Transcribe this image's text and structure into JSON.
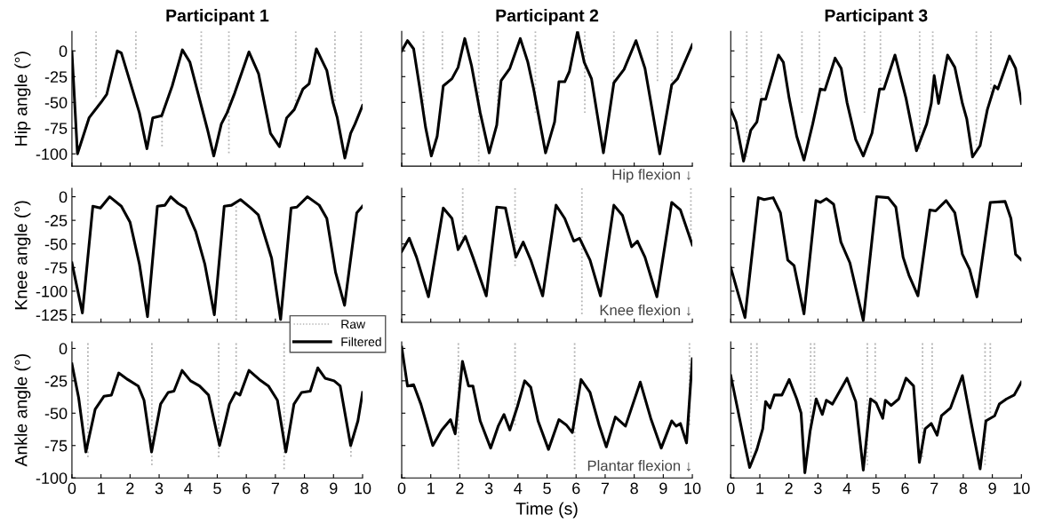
{
  "chart_data": [
    {
      "type": "line",
      "title": "Participant 1",
      "ylabel": "Hip angle (°)",
      "xlim": [
        0,
        10
      ],
      "ylim": [
        -112,
        19
      ],
      "xticks": [
        0,
        1,
        2,
        3,
        4,
        5,
        6,
        7,
        8,
        9,
        10
      ],
      "yticks": [
        -100,
        -75,
        -50,
        -25,
        0
      ],
      "tick_labels": "y",
      "series": [
        {
          "color": "#b4b4b4",
          "line_style": "dotted",
          "x": [
            0.83,
            0.83
          ],
          "values": [
            19,
            -45
          ]
        },
        {
          "color": "#b4b4b4",
          "line_style": "dotted",
          "x": [
            2.2,
            2.2
          ],
          "values": [
            19,
            -20
          ]
        },
        {
          "color": "#b4b4b4",
          "line_style": "dotted",
          "x": [
            3.1,
            3.1
          ],
          "values": [
            -60,
            -95
          ]
        },
        {
          "color": "#b4b4b4",
          "line_style": "dotted",
          "x": [
            4.45,
            4.45
          ],
          "values": [
            19,
            -40
          ]
        },
        {
          "color": "#b4b4b4",
          "line_style": "dotted",
          "x": [
            5.4,
            5.4
          ],
          "values": [
            19,
            -100
          ]
        },
        {
          "color": "#b4b4b4",
          "line_style": "dotted",
          "x": [
            7.7,
            7.7
          ],
          "values": [
            19,
            -55
          ]
        },
        {
          "color": "#b4b4b4",
          "line_style": "dotted",
          "x": [
            9.05,
            9.05
          ],
          "values": [
            19,
            -50
          ]
        },
        {
          "color": "#b4b4b4",
          "line_style": "dotted",
          "x": [
            9.95,
            9.95
          ],
          "values": [
            19,
            -50
          ]
        },
        {
          "color": "#000000",
          "line_style": "solid",
          "x": [
            0,
            0.19,
            0.59,
            1.0,
            1.2,
            1.56,
            1.7,
            2.32,
            2.58,
            2.78,
            3.09,
            3.45,
            3.8,
            4.06,
            4.67,
            4.88,
            5.14,
            5.34,
            5.6,
            6.09,
            6.42,
            6.83,
            7.14,
            7.39,
            7.65,
            7.95,
            8.16,
            8.41,
            8.77,
            8.98,
            9.13,
            9.39,
            9.59,
            9.74,
            10
          ],
          "values": [
            -1,
            -100,
            -65,
            -50,
            -42,
            0,
            -2,
            -60,
            -95,
            -65,
            -63,
            -34,
            1,
            -11,
            -77,
            -102,
            -71,
            -60,
            -41,
            -1,
            -22,
            -80,
            -93,
            -65,
            -57,
            -37,
            -32,
            2,
            -19,
            -50,
            -65,
            -104,
            -80,
            -71,
            -53
          ]
        }
      ]
    },
    {
      "type": "line",
      "title": "Participant 2",
      "annotations": [
        "Hip flexion ↓"
      ],
      "xlim": [
        0,
        10
      ],
      "ylim": [
        -112,
        19
      ],
      "xticks": [
        0,
        1,
        2,
        3,
        4,
        5,
        6,
        7,
        8,
        9,
        10
      ],
      "yticks": [
        -100,
        -75,
        -50,
        -25,
        0
      ],
      "tick_labels": false,
      "series": [
        {
          "color": "#b4b4b4",
          "line_style": "dotted",
          "x": [
            0.75,
            0.75
          ],
          "values": [
            19,
            -60
          ]
        },
        {
          "color": "#b4b4b4",
          "line_style": "dotted",
          "x": [
            1.4,
            1.4
          ],
          "values": [
            19,
            -20
          ]
        },
        {
          "color": "#b4b4b4",
          "line_style": "dotted",
          "x": [
            2.65,
            2.65
          ],
          "values": [
            19,
            -110
          ]
        },
        {
          "color": "#b4b4b4",
          "line_style": "dotted",
          "x": [
            3.3,
            3.3
          ],
          "values": [
            19,
            -60
          ]
        },
        {
          "color": "#b4b4b4",
          "line_style": "dotted",
          "x": [
            4.6,
            4.6
          ],
          "values": [
            19,
            -60
          ]
        },
        {
          "color": "#b4b4b4",
          "line_style": "dotted",
          "x": [
            6.3,
            6.3
          ],
          "values": [
            19,
            -60
          ]
        },
        {
          "color": "#b4b4b4",
          "line_style": "dotted",
          "x": [
            7.3,
            7.3
          ],
          "values": [
            19,
            -30
          ]
        },
        {
          "color": "#b4b4b4",
          "line_style": "dotted",
          "x": [
            8.8,
            8.8
          ],
          "values": [
            19,
            -30
          ]
        },
        {
          "color": "#b4b4b4",
          "line_style": "dotted",
          "x": [
            9.3,
            9.3
          ],
          "values": [
            19,
            -40
          ]
        },
        {
          "color": "#000000",
          "line_style": "solid",
          "x": [
            0,
            0.2,
            0.41,
            0.61,
            0.82,
            1.02,
            1.22,
            1.43,
            1.73,
            1.94,
            2.17,
            2.4,
            2.7,
            3.01,
            3.27,
            3.42,
            3.72,
            4.08,
            4.34,
            4.54,
            4.95,
            5.26,
            5.41,
            5.61,
            5.77,
            6.05,
            6.28,
            6.53,
            6.94,
            7.3,
            7.65,
            8.06,
            8.37,
            8.88,
            9.29,
            9.49,
            10
          ],
          "values": [
            0,
            10,
            2,
            -34,
            -74,
            -102,
            -83,
            -34,
            -27,
            -16,
            12,
            -14,
            -60,
            -99,
            -72,
            -29,
            -17,
            12,
            -11,
            -37,
            -99,
            -69,
            -30,
            -30,
            -20,
            19,
            -11,
            -27,
            -99,
            -31,
            -18,
            10,
            -17,
            -100,
            -33,
            -27,
            6
          ]
        }
      ]
    },
    {
      "type": "line",
      "title": "Participant 3",
      "xlim": [
        0,
        10
      ],
      "ylim": [
        -112,
        19
      ],
      "xticks": [
        0,
        1,
        2,
        3,
        4,
        5,
        6,
        7,
        8,
        9,
        10
      ],
      "yticks": [
        -100,
        -75,
        -50,
        -25,
        0
      ],
      "tick_labels": false,
      "series": [
        {
          "color": "#b4b4b4",
          "line_style": "dotted",
          "x": [
            0.55,
            0.55
          ],
          "values": [
            19,
            -105
          ]
        },
        {
          "color": "#b4b4b4",
          "line_style": "dotted",
          "x": [
            1.05,
            1.05
          ],
          "values": [
            19,
            -47
          ]
        },
        {
          "color": "#b4b4b4",
          "line_style": "dotted",
          "x": [
            2.45,
            2.45
          ],
          "values": [
            19,
            -60
          ]
        },
        {
          "color": "#b4b4b4",
          "line_style": "dotted",
          "x": [
            3.05,
            3.05
          ],
          "values": [
            19,
            -40
          ]
        },
        {
          "color": "#b4b4b4",
          "line_style": "dotted",
          "x": [
            4.6,
            4.6
          ],
          "values": [
            19,
            -60
          ]
        },
        {
          "color": "#b4b4b4",
          "line_style": "dotted",
          "x": [
            5.15,
            5.15
          ],
          "values": [
            19,
            -37
          ]
        },
        {
          "color": "#b4b4b4",
          "line_style": "dotted",
          "x": [
            6.5,
            6.5
          ],
          "values": [
            19,
            -95
          ]
        },
        {
          "color": "#b4b4b4",
          "line_style": "dotted",
          "x": [
            6.95,
            6.95
          ],
          "values": [
            19,
            -24
          ]
        },
        {
          "color": "#b4b4b4",
          "line_style": "dotted",
          "x": [
            8.45,
            8.45
          ],
          "values": [
            19,
            -95
          ]
        },
        {
          "color": "#b4b4b4",
          "line_style": "dotted",
          "x": [
            8.95,
            8.95
          ],
          "values": [
            19,
            -40
          ]
        },
        {
          "color": "#000000",
          "line_style": "solid",
          "x": [
            0,
            0.18,
            0.44,
            0.69,
            0.9,
            1.05,
            1.2,
            1.64,
            1.81,
            2.01,
            2.27,
            2.52,
            2.82,
            3.08,
            3.24,
            3.59,
            3.8,
            4.0,
            4.3,
            4.56,
            4.86,
            5.12,
            5.27,
            5.65,
            6.03,
            6.39,
            6.74,
            6.9,
            7.0,
            7.15,
            7.46,
            7.71,
            7.97,
            8.12,
            8.32,
            8.58,
            8.83,
            9.08,
            9.19,
            9.59,
            9.8,
            10
          ],
          "values": [
            -57,
            -69,
            -107,
            -77,
            -69,
            -47,
            -47,
            -4,
            -11,
            -46,
            -83,
            -106,
            -71,
            -37,
            -38,
            -7,
            -17,
            -50,
            -86,
            -102,
            -80,
            -37,
            -37,
            -4,
            -46,
            -97,
            -71,
            -51,
            -24,
            -51,
            -4,
            -16,
            -51,
            -66,
            -103,
            -92,
            -57,
            -34,
            -37,
            -5,
            -17,
            -51
          ]
        }
      ]
    },
    {
      "type": "line",
      "ylabel": "Knee angle (°)",
      "legend": "bottom right",
      "xlim": [
        0,
        10
      ],
      "ylim": [
        -133,
        9
      ],
      "xticks": [
        0,
        1,
        2,
        3,
        4,
        5,
        6,
        7,
        8,
        9,
        10
      ],
      "yticks": [
        -125,
        -100,
        -75,
        -50,
        -25,
        0
      ],
      "tick_labels": "y",
      "series": [
        {
          "name": "Raw",
          "color": "#b4b4b4",
          "line_style": "dotted",
          "x": [
            5.65,
            5.65
          ],
          "values": [
            -10,
            -133
          ]
        },
        {
          "name": "Filtered",
          "color": "#000000",
          "line_style": "solid",
          "x": [
            0,
            0.36,
            0.72,
            0.98,
            1.3,
            1.7,
            2.0,
            2.32,
            2.6,
            2.94,
            3.2,
            3.4,
            3.65,
            3.91,
            4.26,
            4.57,
            4.9,
            5.24,
            5.49,
            5.8,
            6.16,
            6.41,
            6.87,
            7.18,
            7.54,
            7.74,
            8.1,
            8.51,
            8.77,
            9.07,
            9.38,
            9.8,
            10
          ],
          "values": [
            -70,
            -123,
            -10,
            -12,
            0,
            -10,
            -27,
            -71,
            -127,
            -10,
            -9,
            0,
            -7,
            -12,
            -37,
            -71,
            -125,
            -10,
            -9,
            -3,
            -12,
            -19,
            -65,
            -130,
            -12,
            -11,
            0,
            -9,
            -23,
            -80,
            -115,
            -17,
            -10
          ]
        }
      ]
    },
    {
      "type": "line",
      "annotations": [
        "Knee flexion ↓"
      ],
      "xlim": [
        0,
        10
      ],
      "ylim": [
        -133,
        9
      ],
      "xticks": [
        0,
        1,
        2,
        3,
        4,
        5,
        6,
        7,
        8,
        9,
        10
      ],
      "yticks": [
        -125,
        -100,
        -75,
        -50,
        -25,
        0
      ],
      "tick_labels": false,
      "series": [
        {
          "color": "#b4b4b4",
          "line_style": "dotted",
          "x": [
            2.1,
            2.1
          ],
          "values": [
            9,
            -45
          ]
        },
        {
          "color": "#b4b4b4",
          "line_style": "dotted",
          "x": [
            3.9,
            3.9
          ],
          "values": [
            9,
            -75
          ]
        },
        {
          "color": "#b4b4b4",
          "line_style": "dotted",
          "x": [
            6.2,
            6.2
          ],
          "values": [
            9,
            -125
          ]
        },
        {
          "color": "#b4b4b4",
          "line_style": "dotted",
          "x": [
            9.95,
            9.95
          ],
          "values": [
            9,
            -50
          ]
        },
        {
          "color": "#000000",
          "line_style": "solid",
          "x": [
            0,
            0.26,
            0.51,
            0.92,
            1.43,
            1.73,
            1.94,
            2.19,
            2.45,
            2.91,
            3.27,
            3.57,
            3.93,
            4.18,
            4.44,
            4.85,
            5.31,
            5.61,
            5.92,
            6.12,
            6.48,
            6.84,
            7.3,
            7.6,
            7.91,
            8.11,
            8.37,
            8.78,
            9.29,
            9.59,
            10
          ],
          "values": [
            -58,
            -44,
            -64,
            -106,
            -12,
            -23,
            -56,
            -42,
            -64,
            -105,
            -11,
            -12,
            -64,
            -48,
            -67,
            -105,
            -9,
            -23,
            -47,
            -44,
            -67,
            -105,
            -9,
            -20,
            -53,
            -47,
            -64,
            -106,
            -6,
            -14,
            -51
          ]
        }
      ]
    },
    {
      "type": "line",
      "xlim": [
        0,
        10
      ],
      "ylim": [
        -133,
        9
      ],
      "xticks": [
        0,
        1,
        2,
        3,
        4,
        5,
        6,
        7,
        8,
        9,
        10
      ],
      "yticks": [
        -125,
        -100,
        -75,
        -50,
        -25,
        0
      ],
      "tick_labels": false,
      "series": [
        {
          "color": "#000000",
          "line_style": "solid",
          "x": [
            0,
            0.49,
            0.95,
            1.15,
            1.46,
            1.71,
            1.96,
            2.18,
            2.52,
            2.93,
            3.08,
            3.29,
            3.54,
            3.79,
            4.1,
            4.56,
            5.02,
            5.42,
            5.68,
            5.93,
            6.13,
            6.44,
            6.85,
            7.05,
            7.41,
            7.71,
            7.97,
            8.22,
            8.47,
            8.93,
            9.44,
            9.64,
            9.8,
            10
          ],
          "values": [
            -75,
            -128,
            -1,
            -3,
            -1,
            -17,
            -67,
            -73,
            -124,
            -4,
            -6,
            -2,
            -8,
            -48,
            -70,
            -131,
            0,
            -1,
            -11,
            -64,
            -83,
            -105,
            -14,
            -15,
            -4,
            -17,
            -61,
            -77,
            -106,
            -6,
            -5,
            -23,
            -61,
            -67
          ]
        }
      ]
    },
    {
      "type": "line",
      "ylabel": "Ankle angle (°)",
      "xlim": [
        0,
        10
      ],
      "ylim": [
        -100,
        5
      ],
      "xticks": [
        0,
        1,
        2,
        3,
        4,
        5,
        6,
        7,
        8,
        9,
        10
      ],
      "yticks": [
        -100,
        -75,
        -50,
        -25,
        0
      ],
      "series": [
        {
          "color": "#b4b4b4",
          "line_style": "dotted",
          "x": [
            0.55,
            0.55
          ],
          "values": [
            4,
            -85
          ]
        },
        {
          "color": "#b4b4b4",
          "line_style": "dotted",
          "x": [
            2.75,
            2.75
          ],
          "values": [
            4,
            -92
          ]
        },
        {
          "color": "#b4b4b4",
          "line_style": "dotted",
          "x": [
            5.05,
            5.05
          ],
          "values": [
            4,
            -85
          ]
        },
        {
          "color": "#b4b4b4",
          "line_style": "dotted",
          "x": [
            5.65,
            5.65
          ],
          "values": [
            4,
            -35
          ]
        },
        {
          "color": "#b4b4b4",
          "line_style": "dotted",
          "x": [
            7.3,
            7.3
          ],
          "values": [
            4,
            -95
          ]
        },
        {
          "color": "#b4b4b4",
          "line_style": "dotted",
          "x": [
            9.6,
            9.6
          ],
          "values": [
            -70,
            -85
          ]
        },
        {
          "color": "#000000",
          "line_style": "solid",
          "x": [
            0,
            0.23,
            0.48,
            0.8,
            1.1,
            1.36,
            1.61,
            1.92,
            2.28,
            2.48,
            2.74,
            3.05,
            3.31,
            3.51,
            3.79,
            4.08,
            4.39,
            4.7,
            5.08,
            5.42,
            5.63,
            5.78,
            6.09,
            6.45,
            6.76,
            7.07,
            7.36,
            7.64,
            7.9,
            8.2,
            8.46,
            8.71,
            9.02,
            9.23,
            9.59,
            9.84,
            10
          ],
          "values": [
            -12,
            -38,
            -80,
            -47,
            -37,
            -36,
            -19,
            -24,
            -29,
            -40,
            -80,
            -43,
            -34,
            -33,
            -17,
            -25,
            -29,
            -36,
            -75,
            -43,
            -34,
            -36,
            -17,
            -24,
            -29,
            -40,
            -80,
            -43,
            -34,
            -33,
            -15,
            -23,
            -25,
            -29,
            -75,
            -56,
            -34
          ]
        }
      ]
    },
    {
      "type": "line",
      "xlabel": "Time (s)",
      "annotations": [
        "Plantar flexion ↓"
      ],
      "xlim": [
        0,
        10
      ],
      "ylim": [
        -100,
        5
      ],
      "xticks": [
        0,
        1,
        2,
        3,
        4,
        5,
        6,
        7,
        8,
        9,
        10
      ],
      "yticks": [
        -100,
        -75,
        -50,
        -25,
        0
      ],
      "tick_labels": "x",
      "series": [
        {
          "color": "#b4b4b4",
          "line_style": "dotted",
          "x": [
            1.95,
            1.95
          ],
          "values": [
            4,
            -95
          ]
        },
        {
          "color": "#b4b4b4",
          "line_style": "dotted",
          "x": [
            3.9,
            3.9
          ],
          "values": [
            4,
            -60
          ]
        },
        {
          "color": "#b4b4b4",
          "line_style": "dotted",
          "x": [
            5.95,
            5.95
          ],
          "values": [
            4,
            -95
          ]
        },
        {
          "color": "#b4b4b4",
          "line_style": "dotted",
          "x": [
            9.9,
            9.9
          ],
          "values": [
            4,
            -60
          ]
        },
        {
          "color": "#000000",
          "line_style": "solid",
          "x": [
            0,
            0.2,
            0.41,
            0.66,
            1.07,
            1.38,
            1.68,
            1.84,
            2.09,
            2.3,
            2.45,
            2.7,
            3.06,
            3.32,
            3.52,
            3.72,
            3.98,
            4.23,
            4.44,
            4.69,
            5.05,
            5.41,
            5.66,
            5.87,
            6.17,
            6.48,
            6.79,
            7.04,
            7.35,
            7.7,
            8.21,
            8.57,
            8.93,
            9.29,
            9.44,
            9.59,
            9.8,
            10
          ],
          "values": [
            1,
            -29,
            -28,
            -43,
            -75,
            -63,
            -55,
            -66,
            -10,
            -29,
            -29,
            -56,
            -77,
            -60,
            -51,
            -63,
            -45,
            -25,
            -30,
            -56,
            -78,
            -55,
            -59,
            -65,
            -24,
            -34,
            -59,
            -76,
            -53,
            -60,
            -26,
            -54,
            -77,
            -56,
            -60,
            -58,
            -73,
            -8
          ]
        }
      ]
    },
    {
      "type": "line",
      "xlim": [
        0,
        10
      ],
      "ylim": [
        -100,
        5
      ],
      "xticks": [
        0,
        1,
        2,
        3,
        4,
        5,
        6,
        7,
        8,
        9,
        10
      ],
      "yticks": [
        -100,
        -75,
        -50,
        -25,
        0
      ],
      "tick_labels": "x",
      "series": [
        {
          "color": "#b4b4b4",
          "line_style": "dotted",
          "x": [
            0.7,
            0.7
          ],
          "values": [
            4,
            -85
          ]
        },
        {
          "color": "#b4b4b4",
          "line_style": "dotted",
          "x": [
            0.9,
            0.9
          ],
          "values": [
            4,
            -40
          ]
        },
        {
          "color": "#b4b4b4",
          "line_style": "dotted",
          "x": [
            2.75,
            2.75
          ],
          "values": [
            4,
            -60
          ]
        },
        {
          "color": "#b4b4b4",
          "line_style": "dotted",
          "x": [
            2.88,
            2.88
          ],
          "values": [
            4,
            -40
          ]
        },
        {
          "color": "#b4b4b4",
          "line_style": "dotted",
          "x": [
            4.7,
            4.7
          ],
          "values": [
            4,
            -90
          ]
        },
        {
          "color": "#b4b4b4",
          "line_style": "dotted",
          "x": [
            4.97,
            4.97
          ],
          "values": [
            4,
            -40
          ]
        },
        {
          "color": "#b4b4b4",
          "line_style": "dotted",
          "x": [
            6.6,
            6.6
          ],
          "values": [
            4,
            -85
          ]
        },
        {
          "color": "#b4b4b4",
          "line_style": "dotted",
          "x": [
            6.93,
            6.93
          ],
          "values": [
            4,
            -55
          ]
        },
        {
          "color": "#b4b4b4",
          "line_style": "dotted",
          "x": [
            8.75,
            8.75
          ],
          "values": [
            4,
            -90
          ]
        },
        {
          "color": "#b4b4b4",
          "line_style": "dotted",
          "x": [
            8.93,
            8.93
          ],
          "values": [
            4,
            -50
          ]
        },
        {
          "color": "#000000",
          "line_style": "solid",
          "x": [
            0,
            0.23,
            0.49,
            0.65,
            0.9,
            1.1,
            1.2,
            1.35,
            1.5,
            1.76,
            2.01,
            2.27,
            2.42,
            2.55,
            2.73,
            2.94,
            3.15,
            3.29,
            3.5,
            4.0,
            4.3,
            4.56,
            4.81,
            5.0,
            5.23,
            5.32,
            5.52,
            5.78,
            6.03,
            6.29,
            6.49,
            6.69,
            6.9,
            7.1,
            7.25,
            7.56,
            7.97,
            8.27,
            8.58,
            8.78,
            9.08,
            9.24,
            9.49,
            9.75,
            10
          ],
          "values": [
            -21,
            -46,
            -75,
            -92,
            -78,
            -62,
            -41,
            -46,
            -36,
            -36,
            -24,
            -39,
            -50,
            -96,
            -64,
            -39,
            -51,
            -40,
            -43,
            -23,
            -41,
            -94,
            -39,
            -42,
            -54,
            -40,
            -44,
            -39,
            -23,
            -29,
            -88,
            -62,
            -58,
            -67,
            -52,
            -46,
            -21,
            -57,
            -93,
            -56,
            -52,
            -43,
            -39,
            -36,
            -26
          ]
        }
      ]
    }
  ]
}
